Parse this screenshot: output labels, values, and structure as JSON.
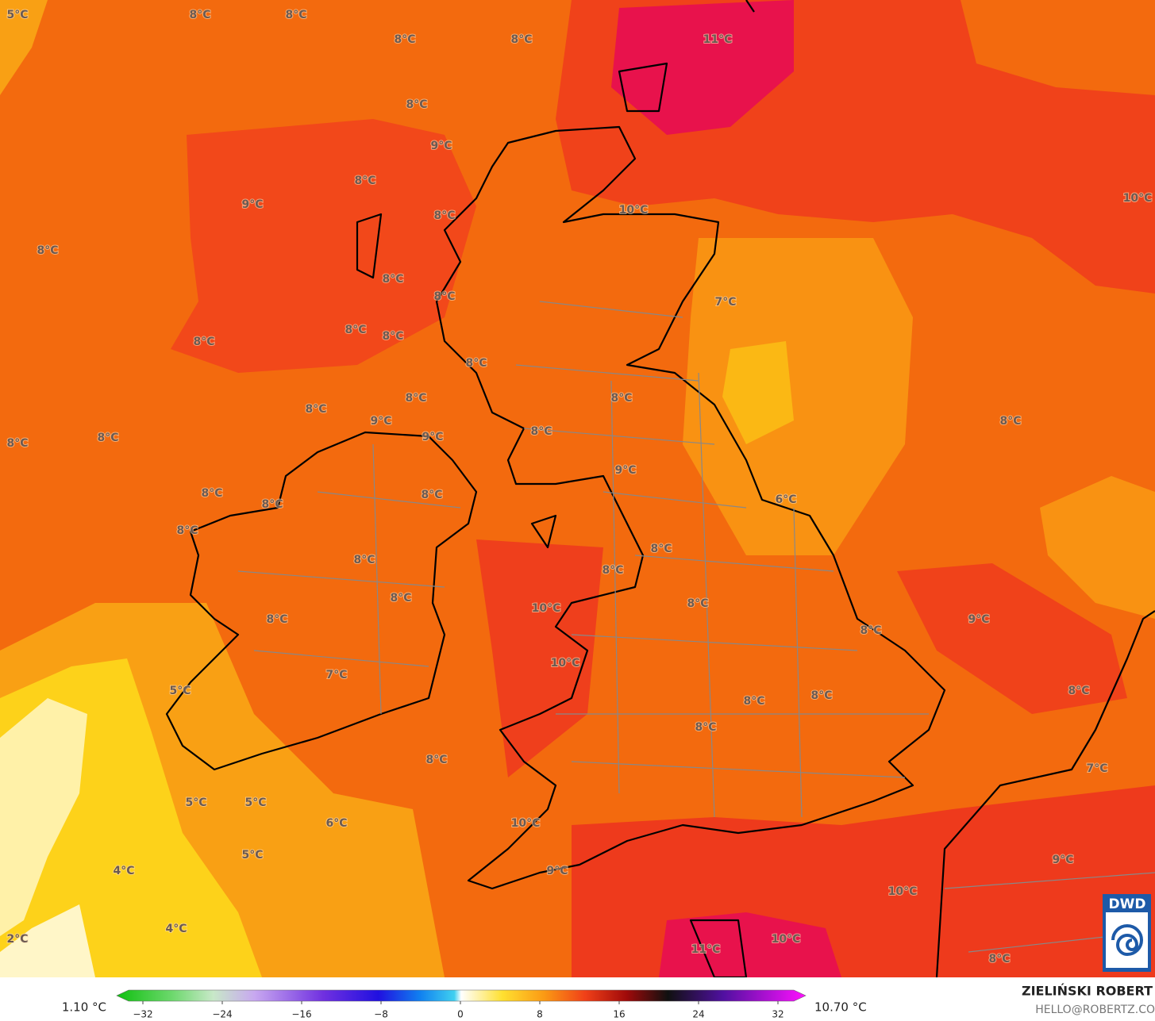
{
  "map": {
    "labels": [
      "5°C",
      "8°C",
      "8°C",
      "8°C",
      "8°C",
      "11°C",
      "8°C",
      "9°C",
      "8°C",
      "9°C",
      "8°C",
      "10°C",
      "10°C",
      "8°C",
      "8°C",
      "8°C",
      "7°C",
      "8°C",
      "8°C",
      "8°C",
      "8°C",
      "8°C",
      "8°C",
      "8°C",
      "9°C",
      "8°C",
      "8°C",
      "8°C",
      "9°C",
      "8°C",
      "9°C",
      "6°C",
      "8°C",
      "8°C",
      "8°C",
      "8°C",
      "8°C",
      "8°C",
      "8°C",
      "8°C",
      "8°C",
      "10°C",
      "8°C",
      "9°C",
      "8°C",
      "10°C",
      "7°C",
      "5°C",
      "8°C",
      "8°C",
      "8°C",
      "8°C",
      "8°C",
      "7°C",
      "5°C",
      "5°C",
      "6°C",
      "10°C",
      "5°C",
      "9°C",
      "4°C",
      "9°C",
      "10°C",
      "4°C",
      "2°C",
      "11°C",
      "10°C",
      "8°C"
    ],
    "logo": "DWD"
  },
  "colorbar": {
    "min_label": "1.10 °C",
    "max_label": "10.70 °C",
    "ticks": [
      "−32",
      "−24",
      "−16",
      "−8",
      "0",
      "8",
      "16",
      "24",
      "32"
    ]
  },
  "credits": {
    "author": "ZIELIŃSKI ROBERT",
    "email": "HELLO@ROBERTZ.CO"
  }
}
